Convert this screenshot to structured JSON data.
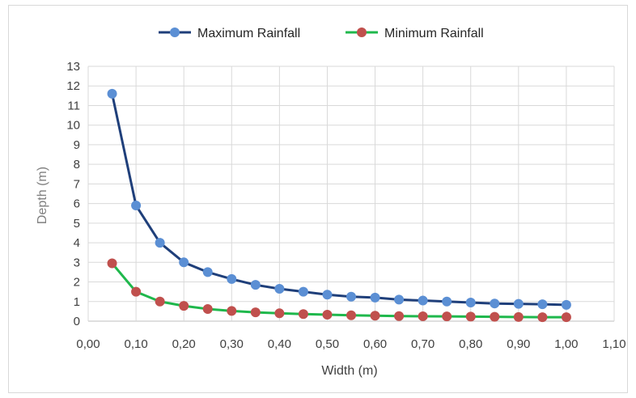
{
  "chart_data": {
    "type": "line",
    "title": "",
    "xlabel": "Width (m)",
    "ylabel": "Depth (m)",
    "xlim": [
      0.0,
      1.1
    ],
    "ylim": [
      0,
      13
    ],
    "x_ticks": [
      "0,00",
      "0,10",
      "0,20",
      "0,30",
      "0,40",
      "0,50",
      "0,60",
      "0,70",
      "0,80",
      "0,90",
      "1,00",
      "1,10"
    ],
    "y_ticks": [
      "0",
      "1",
      "2",
      "3",
      "4",
      "5",
      "6",
      "7",
      "8",
      "9",
      "10",
      "11",
      "12",
      "13"
    ],
    "grid": true,
    "legend_position": "top",
    "x": [
      0.05,
      0.1,
      0.15,
      0.2,
      0.25,
      0.3,
      0.35,
      0.4,
      0.45,
      0.5,
      0.55,
      0.6,
      0.65,
      0.7,
      0.75,
      0.8,
      0.85,
      0.9,
      0.95,
      1.0
    ],
    "series": [
      {
        "name": "Maximum Rainfall",
        "line_color": "#1f3f7a",
        "marker_color": "#5b8fd4",
        "values": [
          11.6,
          5.9,
          4.0,
          3.0,
          2.5,
          2.15,
          1.85,
          1.65,
          1.5,
          1.35,
          1.25,
          1.2,
          1.1,
          1.05,
          1.0,
          0.95,
          0.9,
          0.88,
          0.86,
          0.83
        ]
      },
      {
        "name": "Minimum Rainfall",
        "line_color": "#1fb84c",
        "marker_color": "#c0504d",
        "values": [
          2.95,
          1.5,
          1.0,
          0.78,
          0.62,
          0.52,
          0.45,
          0.4,
          0.36,
          0.33,
          0.3,
          0.28,
          0.26,
          0.25,
          0.24,
          0.23,
          0.22,
          0.21,
          0.2,
          0.2
        ]
      }
    ]
  }
}
